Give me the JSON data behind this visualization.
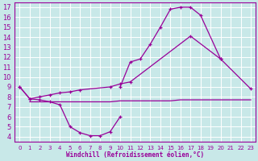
{
  "background_color": "#c8e8e8",
  "line_color": "#990099",
  "grid_color": "#ffffff",
  "xlabel": "Windchill (Refroidissement éolien,°C)",
  "xlabel_color": "#990099",
  "xlim": [
    -0.5,
    23.5
  ],
  "ylim": [
    3.5,
    17.5
  ],
  "yticks": [
    4,
    5,
    6,
    7,
    8,
    9,
    10,
    11,
    12,
    13,
    14,
    15,
    16,
    17
  ],
  "xticks": [
    0,
    1,
    2,
    3,
    4,
    5,
    6,
    7,
    8,
    9,
    10,
    11,
    12,
    13,
    14,
    15,
    16,
    17,
    18,
    19,
    20,
    21,
    22,
    23
  ],
  "curve_low_x": [
    0,
    1,
    2,
    3,
    4,
    5,
    6,
    7,
    8,
    9,
    10
  ],
  "curve_low_y": [
    9.0,
    7.8,
    7.7,
    7.5,
    7.2,
    5.0,
    4.4,
    4.1,
    4.1,
    4.5,
    6.0
  ],
  "curve_high_x": [
    10,
    11,
    12,
    13,
    14,
    15,
    16,
    17,
    18,
    20
  ],
  "curve_high_y": [
    9.0,
    11.5,
    11.8,
    13.3,
    15.0,
    16.8,
    17.0,
    17.0,
    16.2,
    11.8
  ],
  "line_diag_x": [
    0,
    1,
    2,
    3,
    4,
    5,
    6,
    9,
    10,
    11,
    17,
    20,
    23
  ],
  "line_diag_y": [
    9.0,
    7.8,
    8.0,
    8.2,
    8.4,
    8.5,
    8.7,
    9.0,
    9.3,
    9.5,
    14.1,
    11.8,
    8.8
  ],
  "line_flat_x": [
    1,
    2,
    3,
    4,
    5,
    6,
    7,
    8,
    9,
    10,
    11,
    12,
    13,
    14,
    15,
    16,
    17,
    18,
    19,
    20,
    21,
    22,
    23
  ],
  "line_flat_y": [
    7.5,
    7.5,
    7.5,
    7.5,
    7.5,
    7.5,
    7.5,
    7.5,
    7.5,
    7.6,
    7.6,
    7.6,
    7.6,
    7.6,
    7.6,
    7.7,
    7.7,
    7.7,
    7.7,
    7.7,
    7.7,
    7.7,
    7.7
  ]
}
